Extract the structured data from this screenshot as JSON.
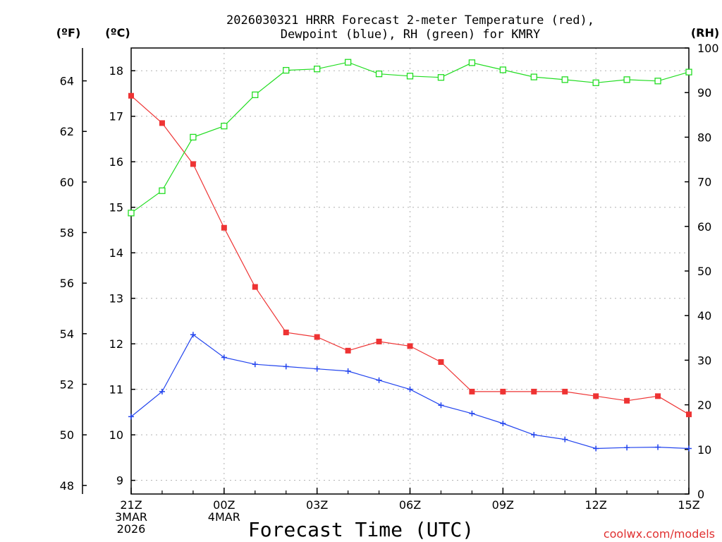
{
  "chart_data": {
    "type": "line",
    "title_line1": "2026030321 HRRR Forecast 2-meter Temperature (red),",
    "title_line2": "Dewpoint (blue), RH (green) for KMRY",
    "xlabel": "Forecast Time (UTC)",
    "credit": "coolwx.com/models",
    "units": {
      "fahrenheit": "(ºF)",
      "celsius": "(ºC)",
      "rh": "(RH)"
    },
    "x_hours": [
      0,
      1,
      2,
      3,
      4,
      5,
      6,
      7,
      8,
      9,
      10,
      11,
      12,
      13,
      14,
      15,
      16,
      17,
      18
    ],
    "x_ticks": [
      {
        "hour": 0,
        "lines": [
          "21Z",
          "3MAR",
          "2026"
        ]
      },
      {
        "hour": 3,
        "lines": [
          "00Z",
          "4MAR"
        ]
      },
      {
        "hour": 6,
        "lines": [
          "03Z"
        ]
      },
      {
        "hour": 9,
        "lines": [
          "06Z"
        ]
      },
      {
        "hour": 12,
        "lines": [
          "09Z"
        ]
      },
      {
        "hour": 15,
        "lines": [
          "12Z"
        ]
      },
      {
        "hour": 18,
        "lines": [
          "15Z"
        ]
      }
    ],
    "celsius_axis": {
      "range": [
        8.7,
        18.5
      ],
      "ticks": [
        9,
        10,
        11,
        12,
        13,
        14,
        15,
        16,
        17,
        18
      ]
    },
    "fahrenheit_axis": {
      "ticks": [
        48,
        50,
        52,
        54,
        56,
        58,
        60,
        62,
        64
      ]
    },
    "rh_axis": {
      "range": [
        0,
        100
      ],
      "ticks": [
        0,
        10,
        20,
        30,
        40,
        50,
        60,
        70,
        80,
        90,
        100
      ]
    },
    "series": [
      {
        "name": "Temperature",
        "axis": "celsius",
        "color": "#ee3333",
        "marker": "filled-square",
        "values": [
          17.45,
          16.85,
          15.95,
          14.55,
          13.25,
          12.25,
          12.15,
          11.85,
          12.05,
          11.95,
          11.6,
          10.95,
          10.95,
          10.95,
          10.95,
          10.85,
          10.75,
          10.85,
          10.45
        ]
      },
      {
        "name": "Dewpoint",
        "axis": "celsius",
        "color": "#2244ee",
        "marker": "plus",
        "values": [
          10.4,
          10.95,
          12.2,
          11.7,
          11.55,
          11.5,
          11.45,
          11.4,
          11.2,
          11.0,
          10.65,
          10.47,
          10.25,
          10.0,
          9.9,
          9.7,
          9.72,
          9.73,
          9.7
        ]
      },
      {
        "name": "RH",
        "axis": "rh",
        "color": "#22dd22",
        "marker": "open-square",
        "values": [
          63,
          68,
          80,
          82.5,
          89.5,
          95,
          95.3,
          96.8,
          94.2,
          93.7,
          93.4,
          96.7,
          95.1,
          93.5,
          92.9,
          92.2,
          92.9,
          92.6,
          94.6
        ]
      }
    ]
  }
}
